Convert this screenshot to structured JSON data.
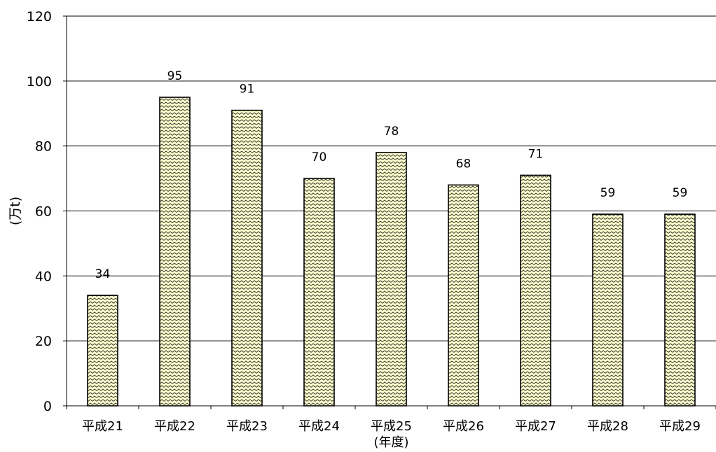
{
  "chart_data": {
    "type": "bar",
    "categories": [
      "平成21",
      "平成22",
      "平成23",
      "平成24",
      "平成25",
      "平成26",
      "平成27",
      "平成28",
      "平成29"
    ],
    "values": [
      34,
      95,
      91,
      70,
      78,
      68,
      71,
      59,
      59
    ],
    "data_labels": [
      "34",
      "95",
      "91",
      "70",
      "78",
      "68",
      "71",
      "59",
      "59"
    ],
    "ylabel": "(万t)",
    "xlabel": "(年度)",
    "ylim": [
      0,
      120
    ],
    "yticks": [
      0,
      20,
      40,
      60,
      80,
      100,
      120
    ],
    "ytick_labels": [
      "0",
      "20",
      "40",
      "60",
      "80",
      "100",
      "120"
    ],
    "grid": true,
    "bar_fill_color": "#ffffcc",
    "bar_pattern_color": "#000000",
    "legend": "none"
  }
}
